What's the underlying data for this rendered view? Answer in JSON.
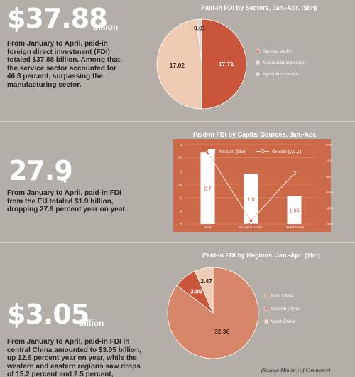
{
  "stats": [
    {
      "value": "$37.88",
      "unit": "billion",
      "text": "From January to April, paid-in foreign direct investment (FDI) totaled $37.88 billion. Among that, the service sector accounted for 46.8 percent, surpassing the manufacturing sector."
    },
    {
      "value": "27.9",
      "unit": "%",
      "text": "From January to April, paid-in FDI from the EU totaled $1.9 billion, dropping 27.9 percent year on year."
    },
    {
      "value": "$3.05",
      "unit": "billion",
      "text": "From January to April, paid-in FDI in central China amounted to $3.05 billion, up 12.6 percent year on year, while the western and eastern regions saw drops of 15.2 percent and 2.5 percent, respectively."
    }
  ],
  "source": "(Source: Ministry of Commerce)",
  "colors": {
    "background": "#b3aea7",
    "dark_orange": "#c9553a",
    "light_peach": "#f0cbb3",
    "pale_gray": "#ddd6ce",
    "orange_panel": "#cc6948",
    "east_china": "#d8866a"
  },
  "chart_data": [
    {
      "type": "pie",
      "title": "Paid-in FDI by Sectors, Jan.-Apr. ($bn)",
      "labels": [
        "Service sector",
        "Manufacturing sector",
        "Agriculture sector"
      ],
      "values": [
        17.71,
        17.02,
        0.61
      ],
      "value_labels": [
        "17.71",
        "17.02",
        "0.61"
      ],
      "legend_labels": [
        "Service sector",
        "Manufacturing sector",
        "Agriculture sector"
      ],
      "legend_position": "right"
    },
    {
      "type": "bar",
      "title": "Paid-in FDI by Capital Sources, Jan.-Apr.",
      "categories": [
        "Japan",
        "European Union",
        "United States"
      ],
      "series": [
        {
          "name": "Amount ($bn)",
          "type": "bar",
          "values": [
            2.7,
            1.9,
            1.05
          ],
          "labels": [
            "2.7",
            "1.9",
            "1.05"
          ]
        },
        {
          "name": "Growth (y.o.y.)",
          "type": "line",
          "values": [
            14.9,
            -27.9,
            1.9
          ],
          "labels": [
            "14.9%",
            "-27.9%",
            "1.9%"
          ]
        }
      ],
      "y_left_ticks": [
        "0",
        ".5",
        "1",
        "1.5",
        "2",
        "2.5",
        "3"
      ],
      "y_left_range": [
        0,
        3
      ],
      "y_right_ticks": [
        "-30%",
        "-20%",
        "-10%",
        "0%",
        "10%",
        "20%"
      ],
      "y_right_range": [
        -30,
        20
      ],
      "grid": true,
      "legend_position": "top"
    },
    {
      "type": "pie",
      "title": "Paid-in FDI by Regions, Jan.-Apr. ($bn)",
      "labels": [
        "East China",
        "Central China",
        "West China"
      ],
      "values": [
        32.36,
        3.05,
        2.47
      ],
      "value_labels": [
        "32.36",
        "3.05",
        "2.47"
      ],
      "legend_labels": [
        "East China",
        "Central China",
        "West China"
      ],
      "legend_position": "right"
    }
  ]
}
